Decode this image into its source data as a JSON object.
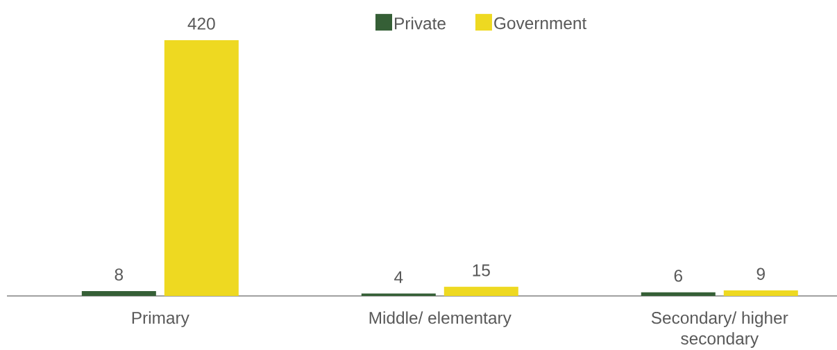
{
  "chart_data": {
    "type": "bar",
    "categories": [
      "Primary",
      "Middle/ elementary",
      "Secondary/ higher secondary"
    ],
    "series": [
      {
        "name": "Private",
        "color": "#355f36",
        "values": [
          8,
          4,
          6
        ]
      },
      {
        "name": "Government",
        "color": "#eed921",
        "values": [
          420,
          15,
          9
        ]
      }
    ],
    "data_labels": true,
    "legend": "top"
  }
}
